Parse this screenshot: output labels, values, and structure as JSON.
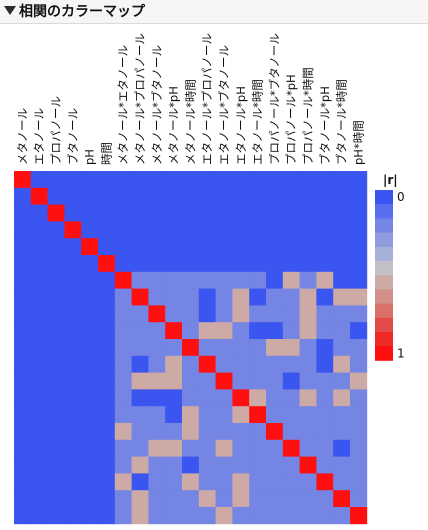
{
  "panel": {
    "title": "相関のカラーマップ"
  },
  "chart_data": {
    "type": "heatmap",
    "title": "",
    "variables": [
      "メタノール",
      "エタノール",
      "プロパノール",
      "ブタノール",
      "pH",
      "時間",
      "メタノール*エタノール",
      "メタノール*プロパノール",
      "メタノール*ブタノール",
      "メタノール*pH",
      "メタノール*時間",
      "エタノール*プロパノール",
      "エタノール*ブタノール",
      "エタノール*pH",
      "エタノール*時間",
      "プロパノール*ブタノール",
      "プロパノール*pH",
      "プロパノール*時間",
      "ブタノール*pH",
      "ブタノール*時間",
      "pH*時間"
    ],
    "matrix_abs_r": [
      [
        1,
        0,
        0,
        0,
        0,
        0,
        0,
        0,
        0,
        0,
        0,
        0,
        0,
        0,
        0,
        0,
        0,
        0,
        0,
        0,
        0
      ],
      [
        0,
        1,
        0,
        0,
        0,
        0,
        0,
        0,
        0,
        0,
        0,
        0,
        0,
        0,
        0,
        0,
        0,
        0,
        0,
        0,
        0
      ],
      [
        0,
        0,
        1,
        0,
        0,
        0,
        0,
        0,
        0,
        0,
        0,
        0,
        0,
        0,
        0,
        0,
        0,
        0,
        0,
        0,
        0
      ],
      [
        0,
        0,
        0,
        1,
        0,
        0,
        0,
        0,
        0,
        0,
        0,
        0,
        0,
        0,
        0,
        0,
        0,
        0,
        0,
        0,
        0
      ],
      [
        0,
        0,
        0,
        0,
        1,
        0,
        0,
        0,
        0,
        0,
        0,
        0,
        0,
        0,
        0,
        0,
        0,
        0,
        0,
        0,
        0
      ],
      [
        0,
        0,
        0,
        0,
        0,
        1,
        0,
        0,
        0,
        0,
        0,
        0,
        0,
        0,
        0,
        0,
        0,
        0,
        0,
        0,
        0
      ],
      [
        0,
        0,
        0,
        0,
        0,
        0,
        1,
        0.2,
        0.2,
        0.2,
        0.2,
        0.2,
        0.2,
        0.2,
        0.2,
        0,
        0.55,
        0.2,
        0.55,
        0,
        0
      ],
      [
        0,
        0,
        0,
        0,
        0,
        0,
        0.2,
        1,
        0.2,
        0.2,
        0.2,
        0,
        0.2,
        0.55,
        0,
        0.2,
        0.2,
        0.55,
        0,
        0.55,
        0.55
      ],
      [
        0,
        0,
        0,
        0,
        0,
        0,
        0.2,
        0.2,
        1,
        0.2,
        0.2,
        0,
        0.2,
        0.55,
        0.2,
        0.2,
        0.2,
        0.55,
        0.2,
        0.2,
        0.2
      ],
      [
        0,
        0,
        0,
        0,
        0,
        0,
        0.2,
        0.2,
        0.2,
        1,
        0.2,
        0.55,
        0.55,
        0.2,
        0,
        0,
        0.2,
        0.55,
        0.2,
        0.2,
        0
      ],
      [
        0,
        0,
        0,
        0,
        0,
        0,
        0.2,
        0.2,
        0.2,
        0.2,
        1,
        0.2,
        0.2,
        0.2,
        0.2,
        0.55,
        0.55,
        0.2,
        0,
        0.2,
        0.2
      ],
      [
        0,
        0,
        0,
        0,
        0,
        0,
        0.2,
        0,
        0.2,
        0.55,
        0.2,
        1,
        0.2,
        0.2,
        0.2,
        0.2,
        0.2,
        0.2,
        0,
        0.55,
        0.2
      ],
      [
        0,
        0,
        0,
        0,
        0,
        0,
        0.2,
        0.55,
        0.55,
        0.55,
        0.2,
        0.2,
        1,
        0.2,
        0.2,
        0.2,
        0,
        0.2,
        0.2,
        0.2,
        0.55
      ],
      [
        0,
        0,
        0,
        0,
        0,
        0,
        0.2,
        0,
        0,
        0,
        0.2,
        0.2,
        0.2,
        1,
        0.55,
        0.2,
        0.2,
        0.55,
        0.2,
        0.55,
        0.2
      ],
      [
        0,
        0,
        0,
        0,
        0,
        0,
        0.2,
        0.2,
        0.2,
        0,
        0.55,
        0.2,
        0.2,
        0.55,
        1,
        0.2,
        0.2,
        0.2,
        0.2,
        0.2,
        0.2
      ],
      [
        0,
        0,
        0,
        0,
        0,
        0,
        0.55,
        0.2,
        0.2,
        0.2,
        0.55,
        0.2,
        0.2,
        0.2,
        0.2,
        1,
        0.2,
        0.2,
        0.2,
        0.2,
        0.2
      ],
      [
        0,
        0,
        0,
        0,
        0,
        0,
        0.2,
        0.2,
        0.55,
        0.55,
        0.2,
        0.2,
        0.55,
        0.2,
        0.2,
        0.2,
        1,
        0.2,
        0.2,
        0,
        0.2
      ],
      [
        0,
        0,
        0,
        0,
        0,
        0,
        0.2,
        0.55,
        0.2,
        0.2,
        0,
        0.2,
        0.2,
        0.2,
        0.2,
        0.2,
        0.2,
        1,
        0.2,
        0.2,
        0.2
      ],
      [
        0,
        0,
        0,
        0,
        0,
        0,
        0.55,
        0,
        0.2,
        0.2,
        0.55,
        0.2,
        0.2,
        0.55,
        0.2,
        0.2,
        0.2,
        0.2,
        1,
        0.2,
        0.2
      ],
      [
        0,
        0,
        0,
        0,
        0,
        0,
        0.2,
        0.55,
        0.2,
        0.2,
        0.2,
        0.55,
        0.2,
        0.55,
        0.2,
        0.2,
        0.2,
        0.2,
        0.2,
        1,
        0.2
      ],
      [
        0,
        0,
        0,
        0,
        0,
        0,
        0.2,
        0.55,
        0.2,
        0.2,
        0.2,
        0.2,
        0.55,
        0.2,
        0.2,
        0.2,
        0.2,
        0.2,
        0.2,
        0.2,
        1
      ]
    ],
    "zlim": [
      0,
      1
    ],
    "legend": {
      "title": "|r|",
      "min_label": "0",
      "max_label": "1",
      "placement": "right"
    },
    "colors": {
      "low": "#3a55f0",
      "mid": "#c2c2c6",
      "high": "#ff1010",
      "scale": [
        "#3a55f0",
        "#5a6ef0",
        "#7485e4",
        "#8e9bdc",
        "#a7b0d6",
        "#c2c2c6",
        "#cdaaa6",
        "#d28e88",
        "#da7068",
        "#e24c46",
        "#ee2a26",
        "#ff1010"
      ]
    }
  }
}
